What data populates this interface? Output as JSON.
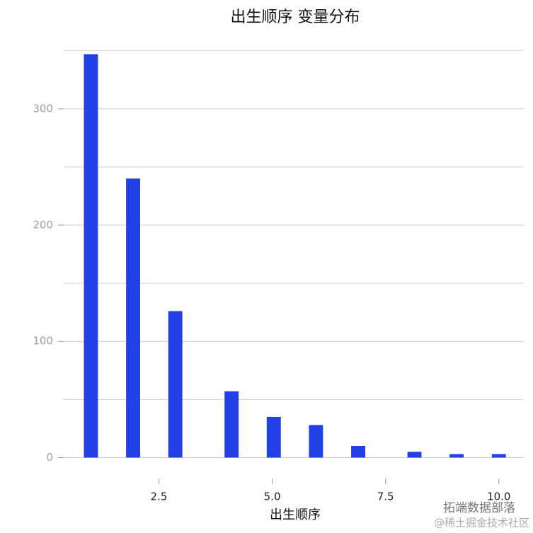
{
  "chart_data": {
    "type": "histogram",
    "title": "出生顺序 变量分布",
    "x_label": "出生顺序",
    "bins": [
      0.845,
      1.155,
      1.466,
      1.776,
      2.086,
      2.397,
      2.707,
      3.017,
      3.328,
      3.638,
      3.948,
      4.259,
      4.569,
      4.879,
      5.19,
      5.5,
      5.81,
      6.121,
      6.431,
      6.741,
      7.052,
      7.362,
      7.672,
      7.983,
      8.293,
      8.603,
      8.914,
      9.224,
      9.534,
      9.845,
      10.155
    ],
    "values": [
      347,
      0,
      0,
      240,
      0,
      0,
      126,
      0,
      0,
      0,
      57,
      0,
      0,
      35,
      0,
      0,
      28,
      0,
      0,
      10,
      0,
      0,
      0,
      5,
      0,
      0,
      3,
      0,
      0,
      3
    ],
    "color": "#2140e8",
    "xlim": [
      0.4,
      10.55
    ],
    "ylim": [
      -18,
      351
    ],
    "xticks": [
      2.5,
      {
        "value": 5,
        "label": "5.0"
      },
      7.5,
      {
        "value": 10,
        "label": "10.0"
      }
    ],
    "yticks": [
      0,
      100,
      200,
      300
    ],
    "y_minor_grid": [
      50,
      150,
      250,
      350
    ],
    "grid": true
  },
  "watermark": {
    "line1": "拓端数据部落",
    "line2": "@稀土掘金技术社区"
  }
}
